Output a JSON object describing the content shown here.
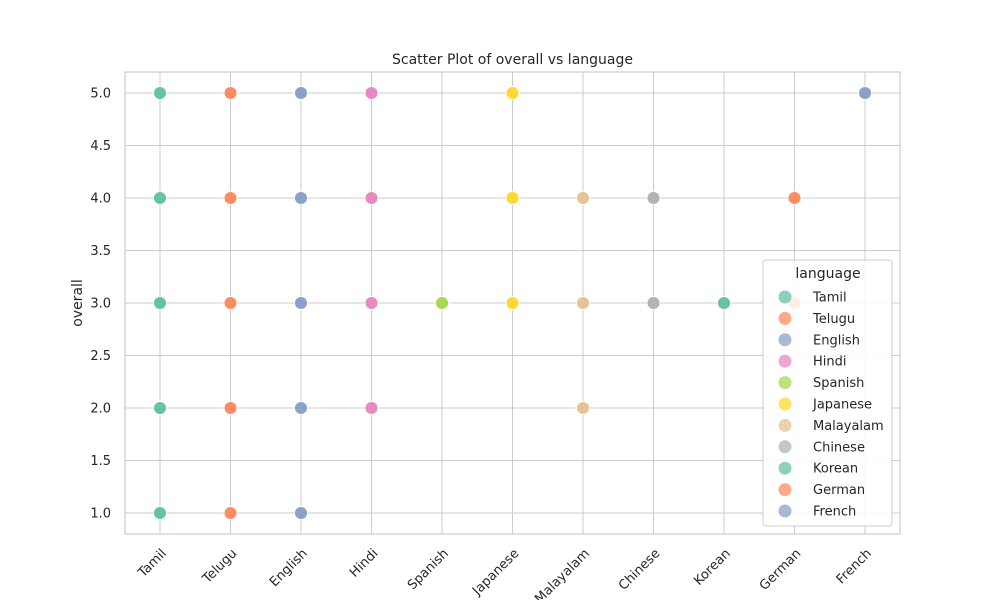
{
  "chart_data": {
    "type": "scatter",
    "title": "Scatter Plot of overall vs language",
    "xlabel": "",
    "ylabel": "overall",
    "categories": [
      "Tamil",
      "Telugu",
      "English",
      "Hindi",
      "Spanish",
      "Japanese",
      "Malayalam",
      "Chinese",
      "Korean",
      "German",
      "French"
    ],
    "ylim": [
      0.8,
      5.2
    ],
    "yticks": [
      "1.0",
      "1.5",
      "2.0",
      "2.5",
      "3.0",
      "3.5",
      "4.0",
      "4.5",
      "5.0"
    ],
    "grid": true,
    "legend": {
      "title": "language",
      "placement": "lower-right"
    },
    "series": [
      {
        "name": "Tamil",
        "color": "#66c2a5",
        "values": [
          5,
          4,
          3,
          2,
          1
        ]
      },
      {
        "name": "Telugu",
        "color": "#fc8d62",
        "values": [
          5,
          4,
          3,
          2,
          1
        ]
      },
      {
        "name": "English",
        "color": "#8da0cb",
        "values": [
          5,
          4,
          3,
          2,
          1
        ]
      },
      {
        "name": "Hindi",
        "color": "#e78ac3",
        "values": [
          5,
          4,
          3,
          2
        ]
      },
      {
        "name": "Spanish",
        "color": "#a6d854",
        "values": [
          3
        ]
      },
      {
        "name": "Japanese",
        "color": "#ffd92f",
        "values": [
          5,
          4,
          3
        ]
      },
      {
        "name": "Malayalam",
        "color": "#e5c494",
        "values": [
          4,
          3,
          2
        ]
      },
      {
        "name": "Chinese",
        "color": "#b3b3b3",
        "values": [
          4,
          3
        ]
      },
      {
        "name": "Korean",
        "color": "#66c2a5",
        "values": [
          3
        ]
      },
      {
        "name": "German",
        "color": "#fc8d62",
        "values": [
          4,
          3
        ]
      },
      {
        "name": "French",
        "color": "#8da0cb",
        "values": [
          5
        ]
      }
    ]
  }
}
